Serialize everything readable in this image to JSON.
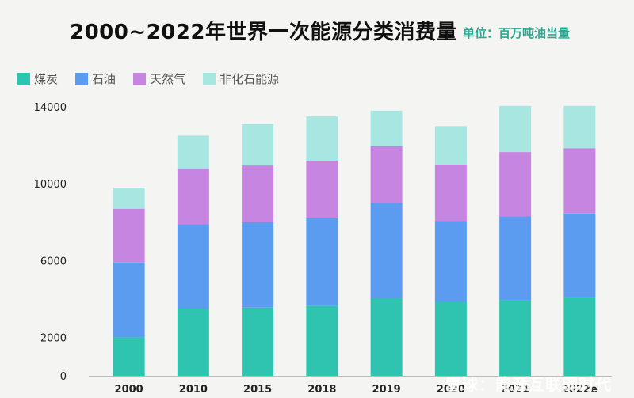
{
  "title": "2000~2022年世界一次能源分类消费量",
  "unit_label": "单位：百万吨油当量",
  "watermark": "雪球：能源互联网时代",
  "colors": {
    "coal": "#2ec4b0",
    "oil": "#5b9bf0",
    "gas": "#c685e0",
    "nonfossil": "#a8e6e2"
  },
  "chart_data": {
    "type": "bar",
    "stacked": true,
    "categories": [
      "2000",
      "2010",
      "2015",
      "2018",
      "2019",
      "2020",
      "2021",
      "2022e"
    ],
    "series": [
      {
        "name": "煤炭",
        "color": "#2ec4b0",
        "values": [
          2000,
          3500,
          3550,
          3650,
          4050,
          3850,
          3950,
          4100
        ]
      },
      {
        "name": "石油",
        "color": "#5b9bf0",
        "values": [
          3900,
          4400,
          4450,
          4550,
          4950,
          4200,
          4350,
          4350
        ]
      },
      {
        "name": "天然气",
        "color": "#c685e0",
        "values": [
          2800,
          2900,
          2950,
          3000,
          2950,
          2950,
          3350,
          3400
        ]
      },
      {
        "name": "非化石能源",
        "color": "#a8e6e2",
        "values": [
          1100,
          1700,
          2150,
          2300,
          1850,
          2000,
          2400,
          2200
        ]
      }
    ],
    "yticks": [
      0,
      2000,
      6000,
      10000,
      14000
    ],
    "ylim": [
      0,
      14000
    ],
    "grid": false,
    "legend": "top-left"
  }
}
